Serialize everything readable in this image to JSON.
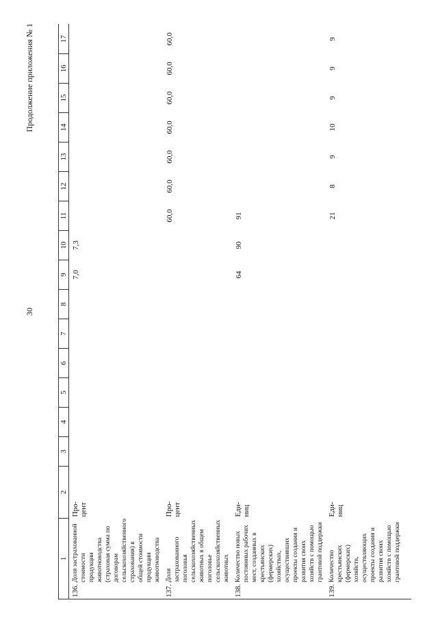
{
  "header": {
    "page_number": "30",
    "caption": "Продолжение приложения № 1"
  },
  "table": {
    "columns": [
      "1",
      "2",
      "3",
      "4",
      "5",
      "6",
      "7",
      "8",
      "9",
      "10",
      "11",
      "12",
      "13",
      "14",
      "15",
      "16",
      "17"
    ],
    "rows": [
      {
        "number": "136.",
        "name": "Доля застрахованной стоимости продукции животноводства (страховая сумма по договорам сельскохозяйственного страхования) в общей стоимости продукции животноводства",
        "unit": "Про-\nцент",
        "values": [
          null,
          null,
          null,
          null,
          null,
          null,
          "7,0",
          "7,3",
          null,
          null,
          null,
          null,
          null,
          null,
          null
        ]
      },
      {
        "number": "137.",
        "name": "Доля застрахованного поголовья сельскохозяйственных животных в общем поголовье сельскохозяйственных животных",
        "unit": "Про-\nцент",
        "values": [
          null,
          null,
          null,
          null,
          null,
          null,
          null,
          null,
          "60,0",
          "60,0",
          "60,0",
          "60,0",
          "60,0",
          "60,0",
          "60,0"
        ]
      },
      {
        "number": "138.",
        "name": "Количество новых постоянных рабочих мест, созданных в крестьянских (фермерских) хозяйствах, осуществивших проекты создания и развития своих хозяйств с помощью грантовой поддержки",
        "unit": "Еди-\nниц",
        "values": [
          null,
          null,
          null,
          null,
          null,
          null,
          "64",
          "90",
          "91",
          null,
          null,
          null,
          null,
          null,
          null
        ]
      },
      {
        "number": "139.",
        "name": "Количество крестьянских (фермерских) хозяйств, осуществляющих проекты создания и развития своих хозяйств с помощью грантовой поддержки",
        "unit": "Еди-\nниц",
        "values": [
          null,
          null,
          null,
          null,
          null,
          null,
          null,
          null,
          "21",
          "8",
          "9",
          "10",
          "9",
          "9",
          "9"
        ]
      }
    ]
  }
}
